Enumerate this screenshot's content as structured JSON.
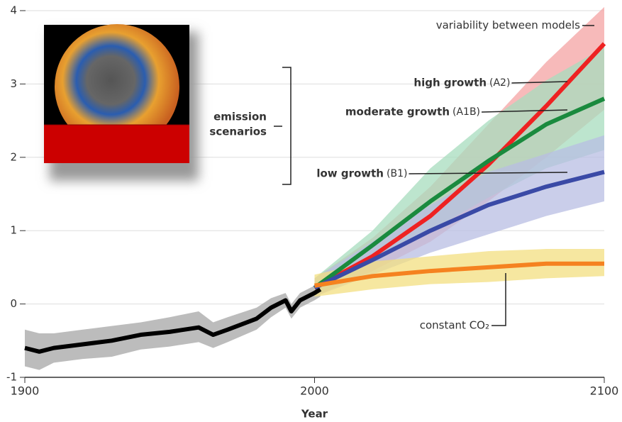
{
  "chart_data": {
    "type": "line",
    "xlabel": "Year",
    "xlim": [
      1900,
      2100
    ],
    "xticks": [
      1900,
      2000,
      2100
    ],
    "ylim": [
      -1,
      4
    ],
    "yticks": [
      -1,
      0,
      1,
      2,
      3,
      4
    ],
    "grid": true,
    "bracket_label": [
      "emission",
      "scenarios"
    ],
    "band_label": "variability between models",
    "series": [
      {
        "color": "#000000",
        "band_color": "#a6a6a6",
        "x": [
          1900,
          1905,
          1910,
          1920,
          1930,
          1940,
          1950,
          1960,
          1965,
          1970,
          1980,
          1985,
          1990,
          1992,
          1995,
          2000,
          2002
        ],
        "values": [
          -0.6,
          -0.65,
          -0.6,
          -0.55,
          -0.5,
          -0.42,
          -0.38,
          -0.32,
          -0.42,
          -0.35,
          -0.2,
          -0.05,
          0.05,
          -0.1,
          0.05,
          0.15,
          0.2
        ],
        "lower": [
          -0.85,
          -0.9,
          -0.8,
          -0.75,
          -0.72,
          -0.62,
          -0.58,
          -0.52,
          -0.6,
          -0.52,
          -0.35,
          -0.18,
          -0.05,
          -0.2,
          -0.05,
          0.05,
          0.1
        ],
        "upper": [
          -0.35,
          -0.4,
          -0.4,
          -0.35,
          -0.3,
          -0.25,
          -0.18,
          -0.1,
          -0.25,
          -0.18,
          -0.05,
          0.08,
          0.15,
          0.0,
          0.15,
          0.25,
          0.3
        ]
      },
      {
        "name": "high growth",
        "code": "(A2)",
        "color": "#ee2222",
        "band_color": "#f4a3a3",
        "x": [
          2000,
          2020,
          2040,
          2060,
          2080,
          2100
        ],
        "values": [
          0.22,
          0.65,
          1.2,
          1.9,
          2.7,
          3.55
        ],
        "lower": [
          0.1,
          0.45,
          0.85,
          1.4,
          2.0,
          2.65
        ],
        "upper": [
          0.35,
          0.9,
          1.6,
          2.45,
          3.3,
          4.05
        ]
      },
      {
        "name": "moderate growth",
        "code": "(A1B)",
        "color": "#1a8a3e",
        "band_color": "#a7dcbd",
        "x": [
          2000,
          2020,
          2040,
          2060,
          2080,
          2100
        ],
        "values": [
          0.22,
          0.8,
          1.4,
          1.95,
          2.45,
          2.8
        ],
        "lower": [
          0.1,
          0.55,
          1.0,
          1.45,
          1.85,
          2.1
        ],
        "upper": [
          0.35,
          1.0,
          1.85,
          2.5,
          3.05,
          3.5
        ]
      },
      {
        "name": "low growth",
        "code": "(B1)",
        "color": "#3a4aa6",
        "band_color": "#b8bde3",
        "x": [
          2000,
          2020,
          2040,
          2060,
          2080,
          2100
        ],
        "values": [
          0.22,
          0.6,
          1.0,
          1.35,
          1.6,
          1.8
        ],
        "lower": [
          0.1,
          0.4,
          0.7,
          0.95,
          1.2,
          1.4
        ],
        "upper": [
          0.35,
          0.85,
          1.35,
          1.8,
          2.05,
          2.3
        ]
      },
      {
        "name": "constant CO₂",
        "color": "#f58220",
        "band_color": "#f3df80",
        "x": [
          2000,
          2020,
          2040,
          2060,
          2080,
          2100
        ],
        "values": [
          0.25,
          0.38,
          0.45,
          0.5,
          0.55,
          0.55
        ],
        "lower": [
          0.1,
          0.2,
          0.27,
          0.3,
          0.35,
          0.38
        ],
        "upper": [
          0.4,
          0.58,
          0.65,
          0.72,
          0.75,
          0.75
        ]
      }
    ]
  }
}
